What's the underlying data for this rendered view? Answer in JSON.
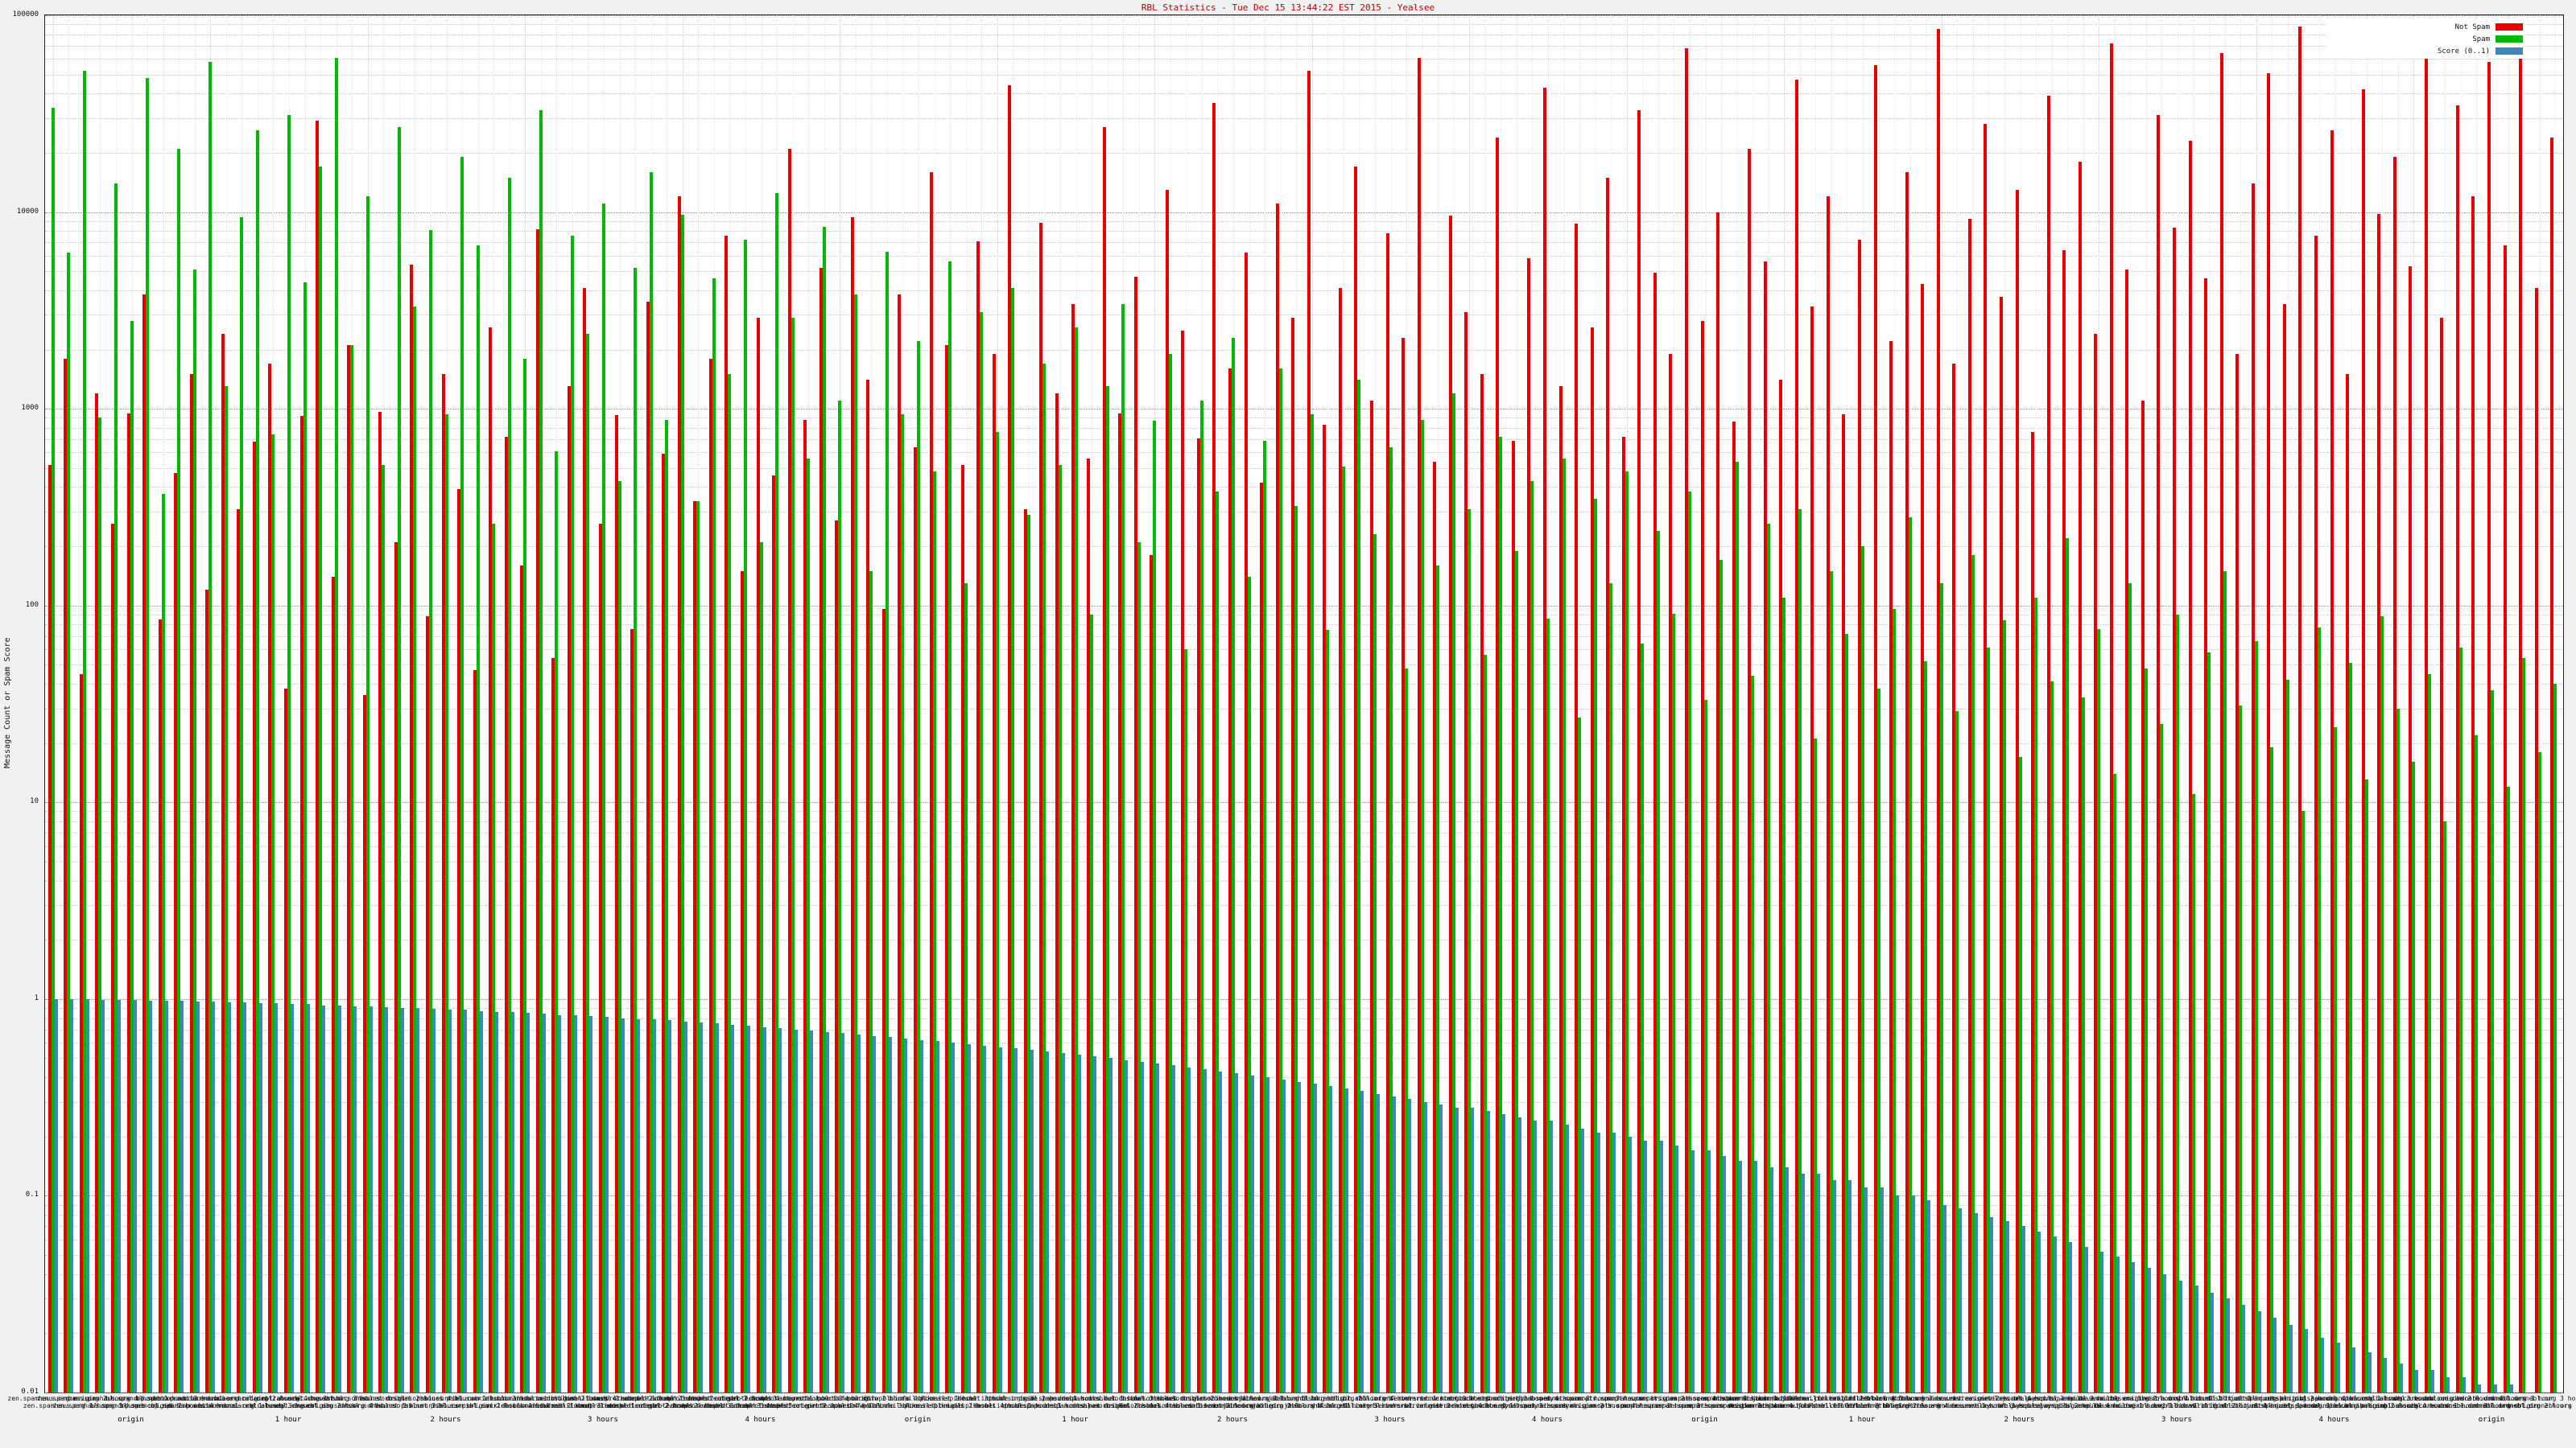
{
  "title": "RBL Statistics - Tue Dec 15 13:44:22 EST 2015 - Yealsee",
  "y_axis": {
    "label": "Message Count or Spam Score",
    "ticks": [
      {
        "label": "100000",
        "value": 100000
      },
      {
        "label": "10000",
        "value": 10000
      },
      {
        "label": "1000",
        "value": 1000
      },
      {
        "label": "100",
        "value": 100
      },
      {
        "label": "10",
        "value": 10
      },
      {
        "label": "1",
        "value": 1
      },
      {
        "label": "0.1",
        "value": 0.1
      },
      {
        "label": "0.01",
        "value": 0.01
      }
    ]
  },
  "legend": [
    {
      "label": "Not Spam",
      "color": "#e60000"
    },
    {
      "label": "Spam",
      "color": "#00b900"
    },
    {
      "label": "Score (0..1)",
      "color": "#3e86c0"
    }
  ],
  "x_period_labels": [
    {
      "index": 5,
      "label": "origin"
    },
    {
      "index": 15,
      "label": "1 hour"
    },
    {
      "index": 25,
      "label": "2 hours"
    },
    {
      "index": 35,
      "label": "3 hours"
    },
    {
      "index": 45,
      "label": "4 hours"
    },
    {
      "index": 55,
      "label": "origin"
    },
    {
      "index": 65,
      "label": "1 hour"
    },
    {
      "index": 75,
      "label": "2 hours"
    },
    {
      "index": 85,
      "label": "3 hours"
    },
    {
      "index": 95,
      "label": "4 hours"
    },
    {
      "index": 105,
      "label": "origin"
    },
    {
      "index": 115,
      "label": "1 hour"
    },
    {
      "index": 125,
      "label": "2 hours"
    },
    {
      "index": 135,
      "label": "3 hours"
    },
    {
      "index": 145,
      "label": "4 hours"
    },
    {
      "index": 155,
      "label": "origin"
    }
  ],
  "chart_data": {
    "type": "bar",
    "yscale": "log",
    "ylim": [
      0.01,
      100000
    ],
    "grid": true,
    "legend_position": "top-right",
    "categories": [
      "zen.spamhaus.org origin",
      "zen.spamhaus.org 1 hour",
      "zen.spamhaus.org 2 hours",
      "zen.spamhaus.org 3 hours",
      "zen.spamhaus.org 4 hours",
      "bl.spamcop.net origin",
      "bl.spamcop.net 1 hour",
      "bl.spamcop.net 2 hours",
      "bl.spamcop.net 3 hours",
      "bl.spamcop.net 4 hours",
      "b.barracudacentral.org origin",
      "b.barracudacentral.org 1 hour",
      "b.barracudacentral.org 2 hours",
      "b.barracudacentral.org 3 hours",
      "b.barracudacentral.org 4 hours",
      "cbl.abuseat.org origin",
      "cbl.abuseat.org 1 hour",
      "cbl.abuseat.org 2 hours",
      "cbl.abuseat.org 3 hours",
      "cbl.abuseat.org 4 hours",
      "dnsbl.sorbs.net origin",
      "dnsbl.sorbs.net 1 hour",
      "dnsbl.sorbs.net 2 hours",
      "dnsbl.sorbs.net 3 hours",
      "dnsbl.sorbs.net 4 hours",
      "psbl.surriel.com origin",
      "psbl.surriel.com 1 hour",
      "psbl.surriel.com 2 hours",
      "psbl.surriel.com 3 hours",
      "psbl.surriel.com 4 hours",
      "ix.dnsbl.manitu.net origin",
      "ix.dnsbl.manitu.net 1 hour",
      "ix.dnsbl.manitu.net 2 hours",
      "ix.dnsbl.manitu.net 3 hours",
      "ix.dnsbl.manitu.net 4 hours",
      "dnsbl-1.uceprotect.net origin",
      "dnsbl-1.uceprotect.net 1 hour",
      "dnsbl-1.uceprotect.net 2 hours",
      "dnsbl-1.uceprotect.net 3 hours",
      "dnsbl-1.uceprotect.net 4 hours",
      "dnsbl-2.uceprotect.net origin",
      "dnsbl-2.uceprotect.net 1 hour",
      "dnsbl-2.uceprotect.net 2 hours",
      "dnsbl-2.uceprotect.net 3 hours",
      "dnsbl-2.uceprotect.net 4 hours",
      "dnsbl-3.uceprotect.net origin",
      "dnsbl-3.uceprotect.net 1 hour",
      "dnsbl-3.uceprotect.net 2 hours",
      "dnsbl-3.uceprotect.net 3 hours",
      "dnsbl-3.uceprotect.net 4 hours",
      "db.wpbl.info origin",
      "db.wpbl.info 1 hour",
      "db.wpbl.info 2 hours",
      "db.wpbl.info 3 hours",
      "db.wpbl.info 4 hours",
      "bl.mailspike.net origin",
      "bl.mailspike.net 1 hour",
      "bl.mailspike.net 2 hours",
      "bl.mailspike.net 3 hours",
      "bl.mailspike.net 4 hours",
      "dnsbl.inps.de origin",
      "dnsbl.inps.de 1 hour",
      "dnsbl.inps.de 2 hours",
      "dnsbl.inps.de 3 hours",
      "dnsbl.inps.de 4 hours",
      "spam.dnsbl.sorbs.net origin",
      "spam.dnsbl.sorbs.net 1 hour",
      "spam.dnsbl.sorbs.net 2 hours",
      "spam.dnsbl.sorbs.net 3 hours",
      "spam.dnsbl.sorbs.net 4 hours",
      "dul.dnsbl.sorbs.net origin",
      "dul.dnsbl.sorbs.net 1 hour",
      "dul.dnsbl.sorbs.net 2 hours",
      "dul.dnsbl.sorbs.net 3 hours",
      "dul.dnsbl.sorbs.net 4 hours",
      "combined.njabl.org origin",
      "combined.njabl.org 1 hour",
      "combined.njabl.org 2 hours",
      "combined.njabl.org 3 hours",
      "combined.njabl.org 4 hours",
      "dnsbl.ahbl.org origin",
      "dnsbl.ahbl.org 1 hour",
      "dnsbl.ahbl.org 2 hours",
      "dnsbl.ahbl.org 3 hours",
      "dnsbl.ahbl.org 4 hours",
      "rbl.interserver.net origin",
      "rbl.interserver.net 1 hour",
      "rbl.interserver.net 2 hours",
      "rbl.interserver.net 3 hours",
      "rbl.interserver.net 4 hours",
      "truncate.gbudb.net origin",
      "truncate.gbudb.net 1 hour",
      "truncate.gbudb.net 2 hours",
      "truncate.gbudb.net 3 hours",
      "truncate.gbudb.net 4 hours",
      "dyna.spamrats.com origin",
      "dyna.spamrats.com 1 hour",
      "dyna.spamrats.com 2 hours",
      "dyna.spamrats.com 3 hours",
      "dyna.spamrats.com 4 hours",
      "noptr.spamrats.com origin",
      "noptr.spamrats.com 1 hour",
      "noptr.spamrats.com 2 hours",
      "noptr.spamrats.com 3 hours",
      "noptr.spamrats.com 4 hours",
      "spam.spamrats.com origin",
      "spam.spamrats.com 1 hour",
      "spam.spamrats.com 2 hours",
      "spam.spamrats.com 3 hours",
      "spam.spamrats.com 4 hours",
      "hostkarma.junkemailfilter.com origin",
      "hostkarma.junkemailfilter.com 1 hour",
      "hostkarma.junkemailfilter.com 2 hours",
      "hostkarma.junkemailfilter.com 3 hours",
      "hostkarma.junkemailfilter.com 4 hours",
      "rbl.efnetrbl.org origin",
      "rbl.efnetrbl.org 1 hour",
      "rbl.efnetrbl.org 2 hours",
      "rbl.efnetrbl.org 3 hours",
      "rbl.efnetrbl.org 4 hours",
      "korea.services.net origin",
      "korea.services.net 1 hour",
      "korea.services.net 2 hours",
      "korea.services.net 3 hours",
      "korea.services.net 4 hours",
      "relays.bl.gweep.ca origin",
      "relays.bl.gweep.ca 1 hour",
      "relays.bl.gweep.ca 2 hours",
      "relays.bl.gweep.ca 3 hours",
      "relays.bl.gweep.ca 4 hours",
      "bl.emailbasura.org origin",
      "bl.emailbasura.org 1 hour",
      "bl.emailbasura.org 2 hours",
      "bl.emailbasura.org 3 hours",
      "bl.emailbasura.org 4 hours",
      "virbl.dnsbl.bit.nl origin",
      "virbl.dnsbl.bit.nl 1 hour",
      "virbl.dnsbl.bit.nl 2 hours",
      "virbl.dnsbl.bit.nl 3 hours",
      "virbl.dnsbl.bit.nl 4 hours",
      "dnsbl.justspam.org origin",
      "dnsbl.justspam.org 1 hour",
      "dnsbl.justspam.org 2 hours",
      "dnsbl.justspam.org 3 hours",
      "dnsbl.justspam.org 4 hours",
      "bl.spamcannibal.org origin",
      "bl.spamcannibal.org 1 hour",
      "bl.spamcannibal.org 2 hours",
      "bl.spamcannibal.org 3 hours",
      "bl.spamcannibal.org 4 hours",
      "ubl.unsubscore.com origin",
      "ubl.unsubscore.com 1 hour",
      "ubl.unsubscore.com 2 hours",
      "ubl.unsubscore.com 3 hours",
      "ubl.unsubscore.com 4 hours",
      "dnsbl.dronebl.org origin",
      "dnsbl.dronebl.org 1 hour",
      "dnsbl.dronebl.org 2 hours",
      "dnsbl.dronebl.org 3 hours",
      "dnsbl.dronebl.org 4 hours"
    ],
    "series": [
      {
        "name": "Not Spam",
        "color": "#e60000",
        "values": [
          520,
          1800,
          45,
          1200,
          260,
          950,
          3800,
          85,
          470,
          1500,
          120,
          2400,
          310,
          680,
          1700,
          38,
          920,
          29000,
          140,
          2100,
          35,
          960,
          210,
          5400,
          88,
          1500,
          390,
          47,
          2600,
          720,
          160,
          8200,
          54,
          1300,
          4100,
          260,
          930,
          76,
          3500,
          590,
          12000,
          340,
          1800,
          7600,
          150,
          2900,
          460,
          21000,
          880,
          5200,
          270,
          9400,
          1400,
          96,
          3800,
          640,
          16000,
          2100,
          520,
          7100,
          1900,
          44000,
          310,
          8800,
          1200,
          3400,
          560,
          27000,
          950,
          4700,
          180,
          13000,
          2500,
          710,
          36000,
          1600,
          6200,
          420,
          11000,
          2900,
          52000,
          830,
          4100,
          17000,
          1100,
          7800,
          2300,
          61000,
          540,
          9600,
          3100,
          1500,
          24000,
          690,
          5800,
          43000,
          1300,
          8700,
          2600,
          15000,
          720,
          33000,
          4900,
          1900,
          68000,
          2800,
          10000,
          860,
          21000,
          5600,
          1400,
          47000,
          3300,
          12000,
          940,
          7200,
          56000,
          2200,
          16000,
          4300,
          85000,
          1700,
          9200,
          28000,
          3700,
          13000,
          760,
          39000,
          6400,
          18000,
          2400,
          72000,
          5100,
          1100,
          31000,
          8300,
          23000,
          4600,
          64000,
          1900,
          14000,
          51000,
          3400,
          88000,
          7600,
          26000,
          1500,
          42000,
          9800,
          19000,
          5300,
          76000,
          2900,
          35000,
          12000,
          58000,
          6800,
          91000,
          4100,
          24000
        ]
      },
      {
        "name": "Spam",
        "color": "#00b900",
        "values": [
          34000,
          6200,
          52000,
          900,
          14000,
          2800,
          48000,
          370,
          21000,
          5100,
          58000,
          1300,
          9400,
          26000,
          740,
          31000,
          4400,
          17000,
          61000,
          2100,
          12000,
          520,
          27000,
          3300,
          8100,
          940,
          19000,
          6800,
          260,
          15000,
          1800,
          33000,
          610,
          7600,
          2400,
          11000,
          430,
          5200,
          16000,
          880,
          9700,
          340,
          4600,
          1500,
          7200,
          210,
          12500,
          2900,
          560,
          8400,
          1100,
          3800,
          150,
          6300,
          940,
          2200,
          480,
          5600,
          130,
          3100,
          760,
          4100,
          290,
          1700,
          520,
          2600,
          90,
          1300,
          3400,
          210,
          870,
          1900,
          60,
          1100,
          380,
          2300,
          140,
          690,
          1600,
          320,
          940,
          75,
          510,
          1400,
          230,
          640,
          48,
          880,
          160,
          1200,
          310,
          56,
          720,
          190,
          430,
          86,
          560,
          27,
          350,
          130,
          480,
          64,
          240,
          91,
          380,
          33,
          170,
          540,
          44,
          260,
          110,
          310,
          21,
          150,
          72,
          200,
          38,
          96,
          280,
          52,
          130,
          29,
          180,
          61,
          84,
          17,
          110,
          41,
          220,
          34,
          76,
          14,
          130,
          48,
          25,
          90,
          11,
          58,
          150,
          31,
          66,
          19,
          42,
          9,
          77,
          24,
          51,
          13,
          88,
          30,
          16,
          45,
          8,
          61,
          22,
          37,
          12,
          54,
          18,
          40
        ]
      },
      {
        "name": "Score (0..1)",
        "color": "#3e86c0",
        "values": [
          1.0,
          1.0,
          1.0,
          0.99,
          0.99,
          0.99,
          0.98,
          0.98,
          0.98,
          0.97,
          0.97,
          0.96,
          0.96,
          0.95,
          0.95,
          0.94,
          0.94,
          0.93,
          0.93,
          0.92,
          0.92,
          0.91,
          0.9,
          0.9,
          0.89,
          0.88,
          0.88,
          0.87,
          0.86,
          0.86,
          0.85,
          0.84,
          0.83,
          0.83,
          0.82,
          0.81,
          0.8,
          0.79,
          0.79,
          0.78,
          0.77,
          0.76,
          0.75,
          0.74,
          0.73,
          0.72,
          0.71,
          0.7,
          0.69,
          0.68,
          0.67,
          0.66,
          0.65,
          0.64,
          0.63,
          0.62,
          0.61,
          0.6,
          0.59,
          0.58,
          0.57,
          0.56,
          0.55,
          0.54,
          0.53,
          0.52,
          0.51,
          0.5,
          0.49,
          0.48,
          0.47,
          0.46,
          0.45,
          0.44,
          0.43,
          0.42,
          0.41,
          0.4,
          0.39,
          0.38,
          0.37,
          0.36,
          0.35,
          0.34,
          0.33,
          0.32,
          0.31,
          0.3,
          0.29,
          0.28,
          0.28,
          0.27,
          0.26,
          0.25,
          0.24,
          0.24,
          0.23,
          0.22,
          0.21,
          0.21,
          0.2,
          0.19,
          0.19,
          0.18,
          0.17,
          0.17,
          0.16,
          0.15,
          0.15,
          0.14,
          0.14,
          0.13,
          0.13,
          0.12,
          0.12,
          0.11,
          0.11,
          0.1,
          0.1,
          0.095,
          0.09,
          0.086,
          0.082,
          0.078,
          0.074,
          0.07,
          0.066,
          0.062,
          0.058,
          0.055,
          0.052,
          0.049,
          0.046,
          0.043,
          0.04,
          0.037,
          0.035,
          0.032,
          0.03,
          0.028,
          0.026,
          0.024,
          0.022,
          0.021,
          0.019,
          0.018,
          0.017,
          0.016,
          0.015,
          0.014,
          0.013,
          0.013,
          0.012,
          0.012,
          0.011,
          0.011,
          0.011,
          0.01,
          0.01,
          0.01
        ]
      }
    ]
  }
}
